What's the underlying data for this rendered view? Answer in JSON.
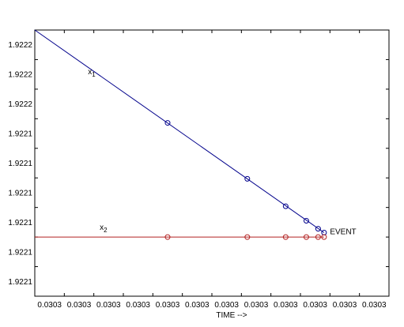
{
  "chart_data": {
    "type": "line",
    "title": "",
    "xlabel": "TIME -->",
    "ylabel": "",
    "grid": true,
    "xlim": [
      0,
      12
    ],
    "ylim": [
      0,
      9
    ],
    "x_tick_labels": [
      "0.0303",
      "0.0303",
      "0.0303",
      "0.0303",
      "0.0303",
      "0.0303",
      "0.0303",
      "0.0303",
      "0.0303",
      "0.0303",
      "0.0303",
      "0.0303"
    ],
    "y_tick_labels": [
      "1.9222",
      "1.9222",
      "1.9222",
      "1.9221",
      "1.9221",
      "1.9221",
      "1.9221",
      "1.9221",
      "1.9221"
    ],
    "series": [
      {
        "name": "x1",
        "color": "#00008b",
        "marker": "circle",
        "line": [
          [
            0,
            9
          ],
          [
            9.8,
            2.15
          ]
        ],
        "points": [
          [
            4.5,
            5.86
          ],
          [
            7.2,
            3.97
          ],
          [
            8.5,
            3.04
          ],
          [
            9.2,
            2.55
          ],
          [
            9.6,
            2.28
          ],
          [
            9.8,
            2.15
          ]
        ]
      },
      {
        "name": "x2",
        "color": "#b22222",
        "marker": "circle",
        "line": [
          [
            0,
            2.0
          ],
          [
            9.8,
            2.0
          ]
        ],
        "points": [
          [
            4.5,
            2.0
          ],
          [
            7.2,
            2.0
          ],
          [
            8.5,
            2.0
          ],
          [
            9.2,
            2.0
          ],
          [
            9.6,
            2.0
          ],
          [
            9.8,
            2.0
          ]
        ]
      }
    ],
    "annotations": [
      {
        "text": "x",
        "sub": "1",
        "x": 1.8,
        "y": 7.5
      },
      {
        "text": "x",
        "sub": "2",
        "x": 2.2,
        "y": 2.25
      },
      {
        "text": "EVENT",
        "x": 10.0,
        "y": 2.1
      }
    ],
    "colors": {
      "grid": "#000000",
      "axis": "#000000",
      "background": "#ffffff"
    }
  }
}
